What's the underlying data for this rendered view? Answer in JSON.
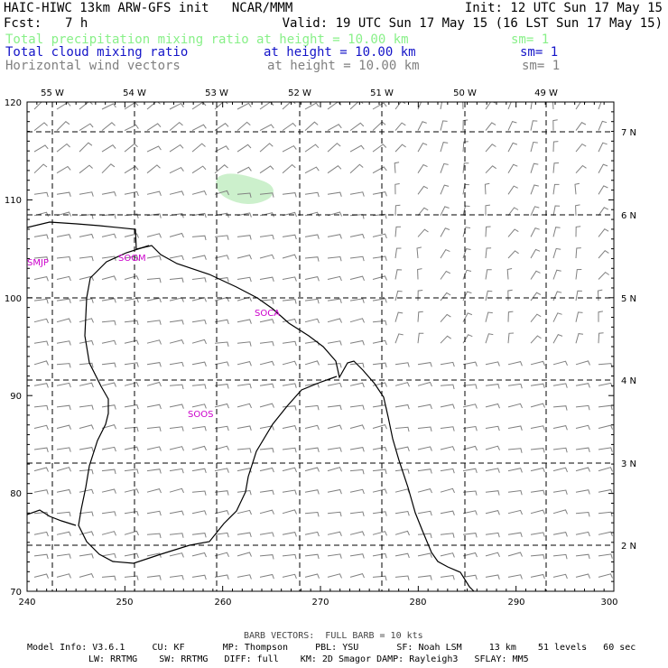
{
  "header": {
    "title_left": "HAIC-HIWC 13km ARW-GFS init   NCAR/MMM",
    "init": "Init: 12 UTC Sun 17 May 15",
    "fcst_label": "Fcst:",
    "fcst_value": "7 h",
    "valid": "Valid: 19 UTC Sun 17 May 15 (16 LST Sun 17 May 15)"
  },
  "fields": [
    {
      "name": "Total precipitation mixing ratio",
      "height": "at height = 10.00 km",
      "sm": "sm= 1",
      "color": "#88f088"
    },
    {
      "name": "Total cloud mixing ratio",
      "height": "at height = 10.00 km",
      "sm": "sm= 1",
      "color": "#1414c8"
    },
    {
      "name": "Horizontal wind vectors",
      "height": "at height = 10.00 km",
      "sm": "sm= 1",
      "color": "#808080"
    }
  ],
  "map": {
    "x_ticks": [
      "240",
      "250",
      "260",
      "270",
      "280",
      "290",
      "300"
    ],
    "y_ticks": [
      "70",
      "80",
      "90",
      "100",
      "110",
      "120"
    ],
    "lon_labels": [
      "55 W",
      "54 W",
      "53 W",
      "52 W",
      "51 W",
      "50 W",
      "49 W"
    ],
    "lat_labels": [
      "7 N",
      "6 N",
      "5 N",
      "4 N",
      "3 N",
      "2 N"
    ],
    "stations": [
      "SMJP",
      "SOGM",
      "SOCA",
      "SOOS"
    ],
    "colors": {
      "coast": "#000000",
      "grid": "#000000",
      "barb": "#808080",
      "station": "#cc00cc",
      "precip": "#ccf0cc"
    }
  },
  "footer": {
    "barb_note": "BARB VECTORS:  FULL BARB = 10 kts",
    "model_line1": "Model Info: V3.6.1     CU: KF       MP: Thompson     PBL: YSU       SF: Noah LSM     13 km    51 levels   60 sec",
    "model_line2": "LW: RRTMG    SW: RRTMG   DIFF: full    KM: 2D Smagor DAMP: Rayleigh3   SFLAY: MM5"
  }
}
